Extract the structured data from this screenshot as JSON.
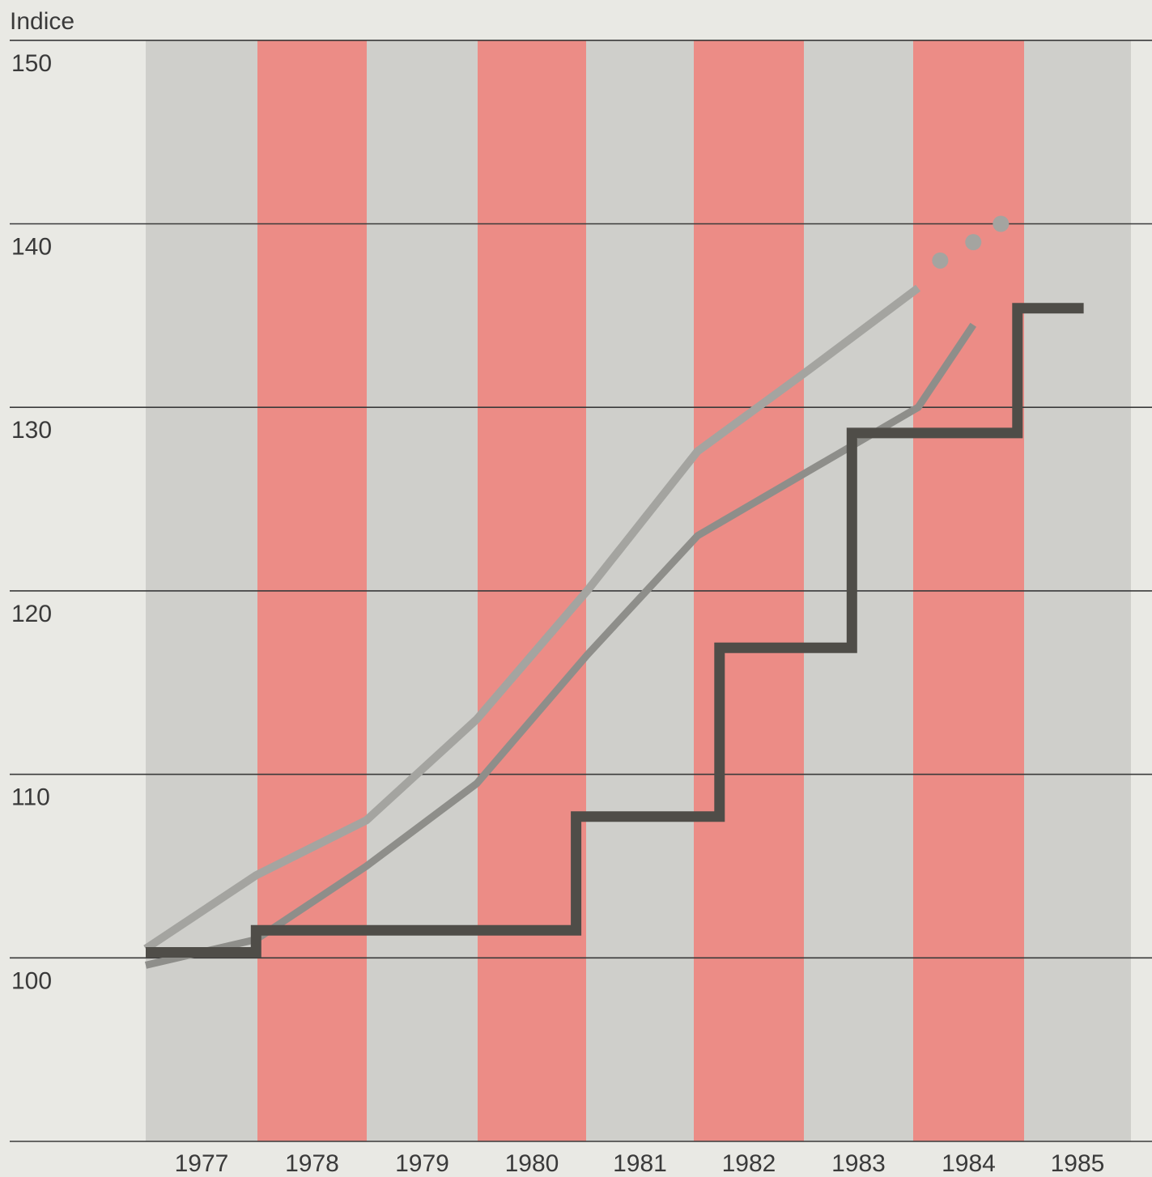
{
  "chart_data": {
    "type": "line",
    "ylabel": "Indice",
    "ylim": [
      90,
      150
    ],
    "yticks": [
      100,
      110,
      120,
      130,
      140,
      150
    ],
    "categories": [
      "1977",
      "1978",
      "1979",
      "1980",
      "1981",
      "1982",
      "1983",
      "1984",
      "1985"
    ],
    "grid": "horizontal",
    "colors": {
      "background": "#e9e9e4",
      "band_grey": "#cfcfcb",
      "band_pink": "#ec8c86",
      "grid": "#3a3a3a",
      "series_light": "#a4a4a0",
      "series_mid": "#8e8e8a",
      "series_dark": "#4f4d48"
    },
    "series": [
      {
        "style": "light-grey line with dotted extension",
        "x": [
          1977.0,
          1978.0,
          1979.0,
          1980.0,
          1981.0,
          1982.0,
          1983.0,
          1984.0
        ],
        "values": [
          100.5,
          104.5,
          107.5,
          113.0,
          120.0,
          127.6,
          132.0,
          136.5
        ],
        "dotted_x": [
          1984.2,
          1984.5,
          1984.75
        ],
        "dotted_values": [
          138.0,
          139.0,
          140.0
        ]
      },
      {
        "style": "mid-grey line",
        "x": [
          1977.0,
          1978.0,
          1979.0,
          1980.0,
          1981.0,
          1982.0,
          1983.0,
          1984.0,
          1984.5
        ],
        "values": [
          99.6,
          101.0,
          105.0,
          109.5,
          116.5,
          123.0,
          126.5,
          130.0,
          134.5
        ]
      },
      {
        "style": "dark step line",
        "x": [
          1977.0,
          1978.0,
          1978.0,
          1980.9,
          1980.9,
          1982.2,
          1982.2,
          1983.4,
          1983.4,
          1984.9,
          1984.9,
          1985.5
        ],
        "values": [
          100.3,
          100.3,
          101.5,
          101.5,
          107.7,
          107.7,
          116.9,
          116.9,
          128.6,
          128.6,
          135.4,
          135.4
        ]
      }
    ]
  }
}
